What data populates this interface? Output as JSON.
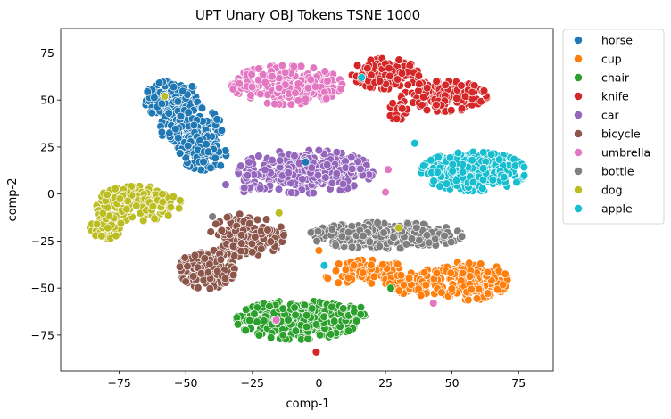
{
  "chart_data": {
    "type": "scatter",
    "title": "UPT Unary OBJ Tokens TSNE 1000",
    "xlabel": "comp-1",
    "ylabel": "comp-2",
    "xlim": [
      -97,
      88
    ],
    "ylim": [
      -94,
      88
    ],
    "xticks": [
      -75,
      -50,
      -25,
      0,
      25,
      50,
      75
    ],
    "yticks": [
      -75,
      -50,
      -25,
      0,
      25,
      50,
      75
    ],
    "grid": false,
    "legend_position": "outside-right",
    "series": [
      {
        "name": "horse",
        "color": "#1f77b4",
        "clusters": [
          {
            "cx": -55,
            "cy": 50,
            "rx": 9,
            "ry": 9,
            "n": 130
          },
          {
            "cx": -48,
            "cy": 35,
            "rx": 10,
            "ry": 10,
            "n": 140
          },
          {
            "cx": -43,
            "cy": 22,
            "rx": 8,
            "ry": 8,
            "n": 90
          }
        ]
      },
      {
        "name": "cup",
        "color": "#ff7f0e",
        "clusters": [
          {
            "cx": 18,
            "cy": -42,
            "rx": 14,
            "ry": 6,
            "n": 90
          },
          {
            "cx": 38,
            "cy": -47,
            "rx": 10,
            "ry": 6,
            "n": 70
          },
          {
            "cx": 57,
            "cy": -46,
            "rx": 12,
            "ry": 9,
            "n": 210
          }
        ]
      },
      {
        "name": "chair",
        "color": "#2ca02c",
        "clusters": [
          {
            "cx": -8,
            "cy": -67,
            "rx": 20,
            "ry": 9,
            "n": 340
          },
          {
            "cx": 13,
            "cy": -63,
            "rx": 4,
            "ry": 4,
            "n": 25
          }
        ]
      },
      {
        "name": "knife",
        "color": "#d62728",
        "clusters": [
          {
            "cx": 25,
            "cy": 64,
            "rx": 11,
            "ry": 7,
            "n": 130
          },
          {
            "cx": 47,
            "cy": 52,
            "rx": 14,
            "ry": 7,
            "n": 180
          },
          {
            "cx": 30,
            "cy": 44,
            "rx": 3,
            "ry": 5,
            "n": 25
          }
        ]
      },
      {
        "name": "car",
        "color": "#9467bd",
        "clusters": [
          {
            "cx": -5,
            "cy": 12,
            "rx": 22,
            "ry": 10,
            "n": 340
          },
          {
            "cx": -26,
            "cy": 3,
            "rx": 3,
            "ry": 2,
            "n": 10
          }
        ]
      },
      {
        "name": "bicycle",
        "color": "#8c564b",
        "clusters": [
          {
            "cx": -27,
            "cy": -22,
            "rx": 12,
            "ry": 10,
            "n": 170
          },
          {
            "cx": -42,
            "cy": -40,
            "rx": 9,
            "ry": 9,
            "n": 160
          }
        ]
      },
      {
        "name": "umbrella",
        "color": "#e377c2",
        "clusters": [
          {
            "cx": -12,
            "cy": 58,
            "rx": 18,
            "ry": 9,
            "n": 300
          }
        ]
      },
      {
        "name": "bottle",
        "color": "#7f7f7f",
        "clusters": [
          {
            "cx": 25,
            "cy": -22,
            "rx": 25,
            "ry": 6,
            "n": 320
          }
        ]
      },
      {
        "name": "dog",
        "color": "#bcbd22",
        "clusters": [
          {
            "cx": -68,
            "cy": -5,
            "rx": 14,
            "ry": 8,
            "n": 220
          },
          {
            "cx": -80,
            "cy": -17,
            "rx": 5,
            "ry": 6,
            "n": 80
          }
        ]
      },
      {
        "name": "apple",
        "color": "#17becf",
        "clusters": [
          {
            "cx": 58,
            "cy": 12,
            "rx": 17,
            "ry": 9,
            "n": 310
          }
        ]
      }
    ],
    "outliers": [
      {
        "series": "dog",
        "x": -58,
        "y": 52
      },
      {
        "series": "knife",
        "x": -1,
        "y": -84
      },
      {
        "series": "umbrella",
        "x": -16,
        "y": -67
      },
      {
        "series": "umbrella",
        "x": 43,
        "y": -58
      },
      {
        "series": "umbrella",
        "x": 26,
        "y": 13
      },
      {
        "series": "umbrella",
        "x": 25,
        "y": 1
      },
      {
        "series": "apple",
        "x": 16,
        "y": 62
      },
      {
        "series": "apple",
        "x": 2,
        "y": -38
      },
      {
        "series": "apple",
        "x": 36,
        "y": 27
      },
      {
        "series": "car",
        "x": -35,
        "y": 5
      },
      {
        "series": "car",
        "x": -22,
        "y": 3
      },
      {
        "series": "dog",
        "x": 30,
        "y": -18
      },
      {
        "series": "dog",
        "x": -15,
        "y": -10
      },
      {
        "series": "horse",
        "x": -5,
        "y": 17
      },
      {
        "series": "cup",
        "x": 0,
        "y": -30
      },
      {
        "series": "bottle",
        "x": -40,
        "y": -12
      },
      {
        "series": "chair",
        "x": 27,
        "y": -50
      }
    ]
  }
}
